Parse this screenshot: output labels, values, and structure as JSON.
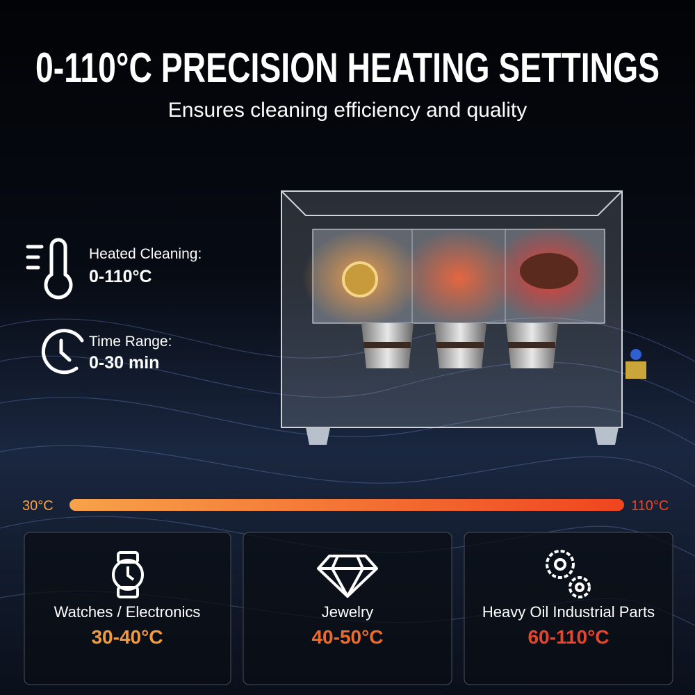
{
  "header": {
    "title": "0-110°C PRECISION HEATING SETTINGS",
    "subtitle": "Ensures cleaning efficiency and quality"
  },
  "features": [
    {
      "label": "Heated Cleaning:",
      "value": "0-110°C"
    },
    {
      "label": "Time Range:",
      "value": "0-30 min"
    }
  ],
  "scale": {
    "start": "30°C",
    "end": "110°C"
  },
  "cards": [
    {
      "label": "Watches / Electronics",
      "range": "30-40°C"
    },
    {
      "label": "Jewelry",
      "range": "40-50°C"
    },
    {
      "label": "Heavy Oil Industrial Parts",
      "range": "60-110°C"
    }
  ]
}
